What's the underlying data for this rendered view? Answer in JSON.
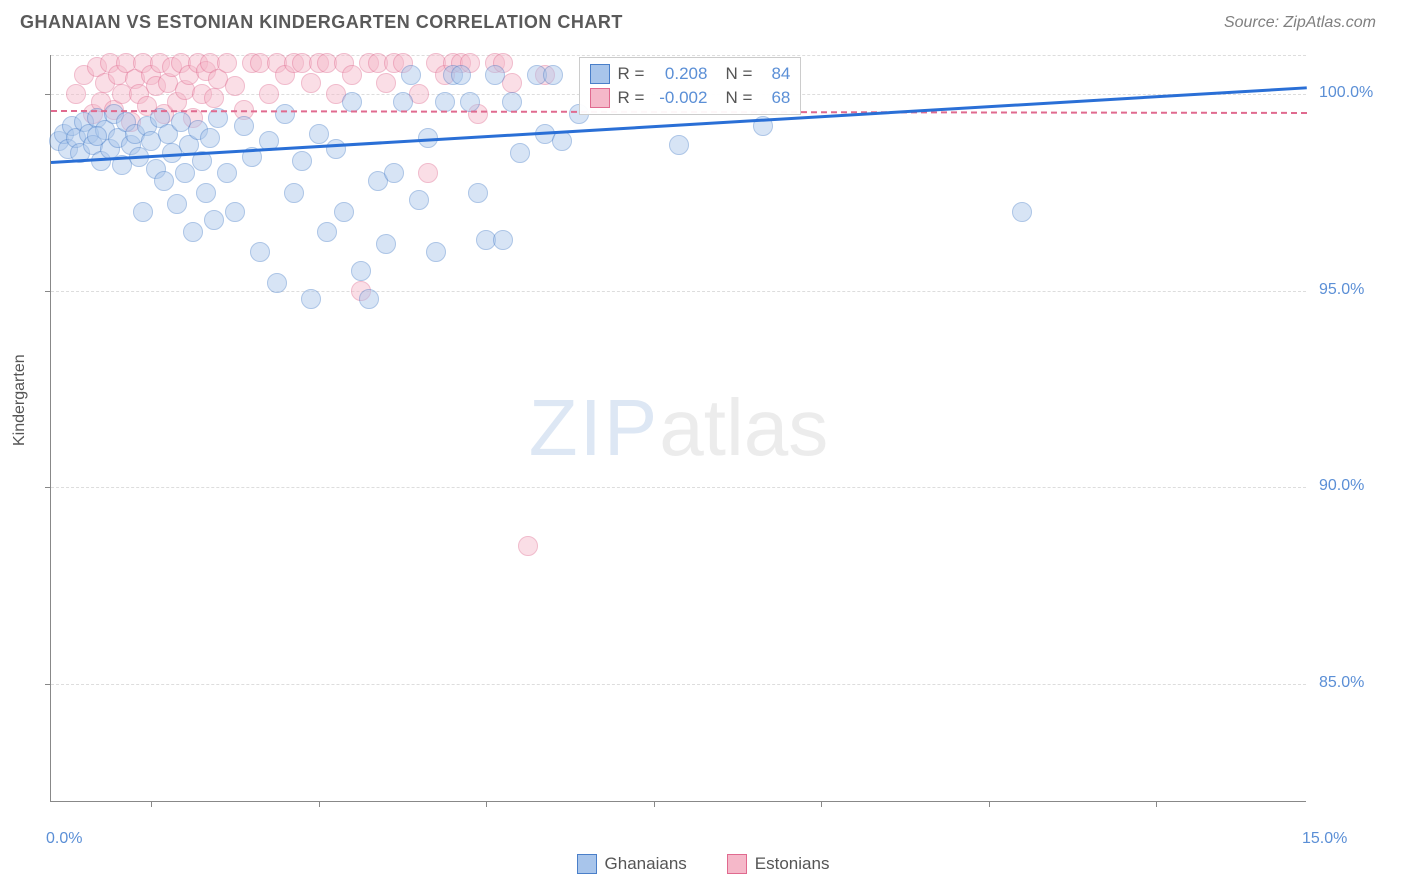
{
  "header": {
    "title": "GHANAIAN VS ESTONIAN KINDERGARTEN CORRELATION CHART",
    "source": "Source: ZipAtlas.com"
  },
  "watermark": {
    "zip": "ZIP",
    "atlas": "atlas"
  },
  "chart": {
    "type": "scatter",
    "xlim": [
      0,
      15
    ],
    "ylim": [
      82,
      101
    ],
    "x_axis_labels": [
      {
        "value": 0.0,
        "label": "0.0%"
      },
      {
        "value": 15.0,
        "label": "15.0%"
      }
    ],
    "x_ticks": [
      1.2,
      3.2,
      5.2,
      7.2,
      9.2,
      11.2,
      13.2
    ],
    "y_axis_labels": [
      {
        "value": 85.0,
        "label": "85.0%"
      },
      {
        "value": 90.0,
        "label": "90.0%"
      },
      {
        "value": 95.0,
        "label": "95.0%"
      },
      {
        "value": 100.0,
        "label": "100.0%"
      }
    ],
    "y_gridlines": [
      85.0,
      90.0,
      95.0,
      100.0,
      101.0
    ],
    "y_label": "Kindergarten",
    "background_color": "#ffffff",
    "grid_color": "#dddddd",
    "axis_color": "#888888",
    "tick_label_color": "#5b8fd6",
    "marker_radius": 10,
    "marker_opacity": 0.45,
    "series": {
      "ghanaians": {
        "label": "Ghanaians",
        "color_fill": "#a8c5eb",
        "color_stroke": "#4a7fc9",
        "R": "0.208",
        "N": "84",
        "trend": {
          "y_at_xmin": 98.3,
          "y_at_xmax": 100.2,
          "color": "#2a6fd6",
          "width": 3,
          "dash": "solid"
        },
        "points": [
          [
            0.1,
            98.8
          ],
          [
            0.15,
            99.0
          ],
          [
            0.2,
            98.6
          ],
          [
            0.25,
            99.2
          ],
          [
            0.3,
            98.9
          ],
          [
            0.35,
            98.5
          ],
          [
            0.4,
            99.3
          ],
          [
            0.45,
            99.0
          ],
          [
            0.5,
            98.7
          ],
          [
            0.55,
            99.4
          ],
          [
            0.6,
            98.3
          ],
          [
            0.65,
            99.1
          ],
          [
            0.7,
            98.6
          ],
          [
            0.75,
            99.5
          ],
          [
            0.8,
            98.9
          ],
          [
            0.85,
            98.2
          ],
          [
            0.9,
            99.3
          ],
          [
            0.95,
            98.7
          ],
          [
            1.0,
            99.0
          ],
          [
            1.05,
            98.4
          ],
          [
            1.1,
            97.0
          ],
          [
            1.15,
            99.2
          ],
          [
            1.2,
            98.8
          ],
          [
            1.25,
            98.1
          ],
          [
            1.3,
            99.4
          ],
          [
            1.35,
            97.8
          ],
          [
            1.4,
            99.0
          ],
          [
            1.45,
            98.5
          ],
          [
            1.5,
            97.2
          ],
          [
            1.55,
            99.3
          ],
          [
            1.6,
            98.0
          ],
          [
            1.65,
            98.7
          ],
          [
            1.7,
            96.5
          ],
          [
            1.75,
            99.1
          ],
          [
            1.8,
            98.3
          ],
          [
            1.85,
            97.5
          ],
          [
            1.9,
            98.9
          ],
          [
            1.95,
            96.8
          ],
          [
            2.0,
            99.4
          ],
          [
            2.1,
            98.0
          ],
          [
            2.2,
            97.0
          ],
          [
            2.3,
            99.2
          ],
          [
            2.4,
            98.4
          ],
          [
            2.5,
            96.0
          ],
          [
            2.6,
            98.8
          ],
          [
            2.7,
            95.2
          ],
          [
            2.8,
            99.5
          ],
          [
            2.9,
            97.5
          ],
          [
            3.0,
            98.3
          ],
          [
            3.1,
            94.8
          ],
          [
            3.2,
            99.0
          ],
          [
            3.3,
            96.5
          ],
          [
            3.4,
            98.6
          ],
          [
            3.5,
            97.0
          ],
          [
            3.6,
            99.8
          ],
          [
            3.7,
            95.5
          ],
          [
            3.8,
            94.8
          ],
          [
            3.9,
            97.8
          ],
          [
            4.0,
            96.2
          ],
          [
            4.1,
            98.0
          ],
          [
            4.2,
            99.8
          ],
          [
            4.3,
            100.5
          ],
          [
            4.4,
            97.3
          ],
          [
            4.5,
            98.9
          ],
          [
            4.6,
            96.0
          ],
          [
            4.7,
            99.8
          ],
          [
            4.8,
            100.5
          ],
          [
            4.9,
            100.5
          ],
          [
            5.0,
            99.8
          ],
          [
            5.1,
            97.5
          ],
          [
            5.2,
            96.3
          ],
          [
            5.3,
            100.5
          ],
          [
            5.4,
            96.3
          ],
          [
            5.5,
            99.8
          ],
          [
            5.6,
            98.5
          ],
          [
            5.8,
            100.5
          ],
          [
            5.9,
            99.0
          ],
          [
            6.0,
            100.5
          ],
          [
            6.1,
            98.8
          ],
          [
            6.3,
            99.5
          ],
          [
            7.5,
            98.7
          ],
          [
            8.5,
            99.2
          ],
          [
            11.6,
            97.0
          ],
          [
            0.55,
            98.95
          ]
        ]
      },
      "estonians": {
        "label": "Estonians",
        "color_fill": "#f5b8c9",
        "color_stroke": "#e06a8f",
        "R": "-0.002",
        "N": "68",
        "trend": {
          "y_at_xmin": 99.6,
          "y_at_xmax": 99.55,
          "color": "#e06a8f",
          "width": 2,
          "dash": "dashed"
        },
        "points": [
          [
            0.3,
            100.0
          ],
          [
            0.4,
            100.5
          ],
          [
            0.5,
            99.5
          ],
          [
            0.55,
            100.7
          ],
          [
            0.6,
            99.8
          ],
          [
            0.65,
            100.3
          ],
          [
            0.7,
            100.8
          ],
          [
            0.75,
            99.6
          ],
          [
            0.8,
            100.5
          ],
          [
            0.85,
            100.0
          ],
          [
            0.9,
            100.8
          ],
          [
            0.95,
            99.3
          ],
          [
            1.0,
            100.4
          ],
          [
            1.05,
            100.0
          ],
          [
            1.1,
            100.8
          ],
          [
            1.15,
            99.7
          ],
          [
            1.2,
            100.5
          ],
          [
            1.25,
            100.2
          ],
          [
            1.3,
            100.8
          ],
          [
            1.35,
            99.5
          ],
          [
            1.4,
            100.3
          ],
          [
            1.45,
            100.7
          ],
          [
            1.5,
            99.8
          ],
          [
            1.55,
            100.8
          ],
          [
            1.6,
            100.1
          ],
          [
            1.65,
            100.5
          ],
          [
            1.7,
            99.4
          ],
          [
            1.75,
            100.8
          ],
          [
            1.8,
            100.0
          ],
          [
            1.85,
            100.6
          ],
          [
            1.9,
            100.8
          ],
          [
            1.95,
            99.9
          ],
          [
            2.0,
            100.4
          ],
          [
            2.1,
            100.8
          ],
          [
            2.2,
            100.2
          ],
          [
            2.3,
            99.6
          ],
          [
            2.4,
            100.8
          ],
          [
            2.5,
            100.8
          ],
          [
            2.6,
            100.0
          ],
          [
            2.7,
            100.8
          ],
          [
            2.8,
            100.5
          ],
          [
            2.9,
            100.8
          ],
          [
            3.0,
            100.8
          ],
          [
            3.1,
            100.3
          ],
          [
            3.2,
            100.8
          ],
          [
            3.3,
            100.8
          ],
          [
            3.4,
            100.0
          ],
          [
            3.5,
            100.8
          ],
          [
            3.6,
            100.5
          ],
          [
            3.7,
            95.0
          ],
          [
            3.8,
            100.8
          ],
          [
            3.9,
            100.8
          ],
          [
            4.0,
            100.3
          ],
          [
            4.1,
            100.8
          ],
          [
            4.2,
            100.8
          ],
          [
            4.4,
            100.0
          ],
          [
            4.5,
            98.0
          ],
          [
            4.6,
            100.8
          ],
          [
            4.7,
            100.5
          ],
          [
            4.8,
            100.8
          ],
          [
            4.9,
            100.8
          ],
          [
            5.0,
            100.8
          ],
          [
            5.1,
            99.5
          ],
          [
            5.3,
            100.8
          ],
          [
            5.4,
            100.8
          ],
          [
            5.5,
            100.3
          ],
          [
            5.7,
            88.5
          ],
          [
            5.9,
            100.5
          ]
        ]
      }
    },
    "legend_stats_box": {
      "R_label": "R =",
      "N_label": "N ="
    }
  }
}
